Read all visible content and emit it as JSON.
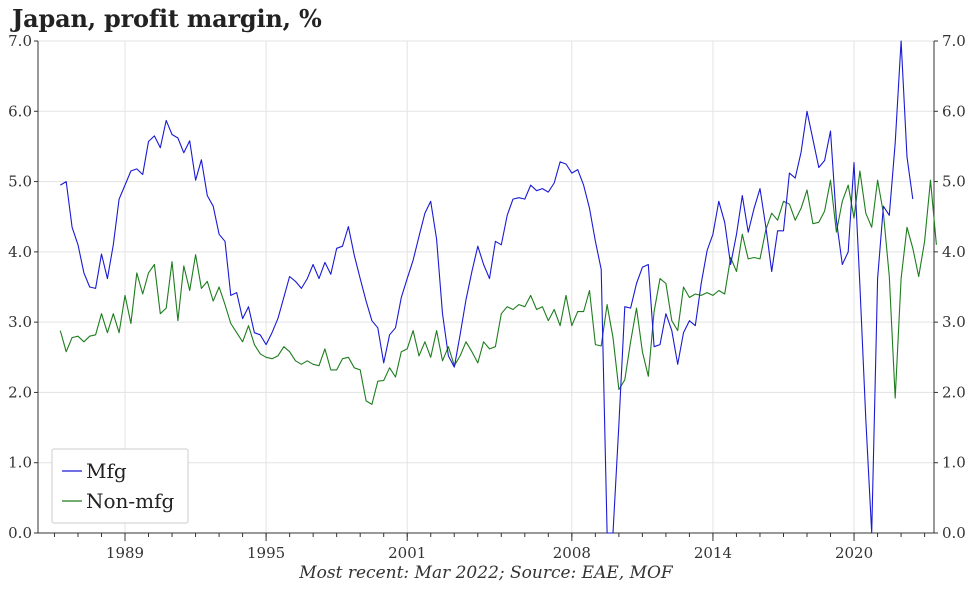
{
  "title": "Japan, profit margin, %",
  "footer": "Most recent: Mar 2022; Source: EAE, MOF",
  "colors": {
    "mfg": "#1a1ad4",
    "nonmfg": "#1e7d1e",
    "grid": "#e3e3e3",
    "axis": "#333333"
  },
  "chart_data": {
    "type": "line",
    "title": "Japan, profit margin, %",
    "xlabel": "",
    "ylabel": "",
    "ylim": [
      0,
      7
    ],
    "xlim": [
      1985.3,
      2023.4
    ],
    "y_ticks": [
      "0.0",
      "1.0",
      "2.0",
      "3.0",
      "4.0",
      "5.0",
      "6.0",
      "7.0"
    ],
    "x_ticks": [
      "1989",
      "1995",
      "2001",
      "2008",
      "2014",
      "2020"
    ],
    "y_axis_sides": "left-and-right",
    "grid": true,
    "legend_position": "bottom-left",
    "series": [
      {
        "name": "Mfg",
        "color": "#1a1ad4",
        "points": [
          [
            1986.25,
            4.95
          ],
          [
            1986.5,
            5.0
          ],
          [
            1986.75,
            4.35
          ],
          [
            1987.0,
            4.1
          ],
          [
            1987.25,
            3.7
          ],
          [
            1987.5,
            3.5
          ],
          [
            1987.75,
            3.48
          ],
          [
            1988.0,
            3.97
          ],
          [
            1988.25,
            3.62
          ],
          [
            1988.5,
            4.1
          ],
          [
            1988.75,
            4.75
          ],
          [
            1989.0,
            4.95
          ],
          [
            1989.25,
            5.15
          ],
          [
            1989.5,
            5.18
          ],
          [
            1989.75,
            5.1
          ],
          [
            1990.0,
            5.57
          ],
          [
            1990.25,
            5.65
          ],
          [
            1990.5,
            5.48
          ],
          [
            1990.75,
            5.87
          ],
          [
            1991.0,
            5.67
          ],
          [
            1991.25,
            5.62
          ],
          [
            1991.5,
            5.41
          ],
          [
            1991.75,
            5.58
          ],
          [
            1992.0,
            5.02
          ],
          [
            1992.25,
            5.31
          ],
          [
            1992.5,
            4.8
          ],
          [
            1992.75,
            4.65
          ],
          [
            1993.0,
            4.25
          ],
          [
            1993.25,
            4.15
          ],
          [
            1993.5,
            3.38
          ],
          [
            1993.75,
            3.42
          ],
          [
            1994.0,
            3.05
          ],
          [
            1994.25,
            3.22
          ],
          [
            1994.5,
            2.85
          ],
          [
            1994.75,
            2.82
          ],
          [
            1995.0,
            2.68
          ],
          [
            1995.25,
            2.85
          ],
          [
            1995.5,
            3.05
          ],
          [
            1995.75,
            3.35
          ],
          [
            1996.0,
            3.65
          ],
          [
            1996.25,
            3.58
          ],
          [
            1996.5,
            3.48
          ],
          [
            1996.75,
            3.62
          ],
          [
            1997.0,
            3.82
          ],
          [
            1997.25,
            3.62
          ],
          [
            1997.5,
            3.85
          ],
          [
            1997.75,
            3.68
          ],
          [
            1998.0,
            4.05
          ],
          [
            1998.25,
            4.08
          ],
          [
            1998.5,
            4.36
          ],
          [
            1998.75,
            3.95
          ],
          [
            1999.0,
            3.62
          ],
          [
            1999.25,
            3.3
          ],
          [
            1999.5,
            3.02
          ],
          [
            1999.75,
            2.92
          ],
          [
            2000.0,
            2.42
          ],
          [
            2000.25,
            2.82
          ],
          [
            2000.5,
            2.92
          ],
          [
            2000.75,
            3.35
          ],
          [
            2001.0,
            3.62
          ],
          [
            2001.25,
            3.88
          ],
          [
            2001.5,
            4.22
          ],
          [
            2001.75,
            4.55
          ],
          [
            2002.0,
            4.72
          ],
          [
            2002.25,
            4.18
          ],
          [
            2002.5,
            3.12
          ],
          [
            2002.75,
            2.52
          ],
          [
            2003.0,
            2.36
          ],
          [
            2003.25,
            2.82
          ],
          [
            2003.5,
            3.32
          ],
          [
            2003.75,
            3.72
          ],
          [
            2004.0,
            4.08
          ],
          [
            2004.25,
            3.82
          ],
          [
            2004.5,
            3.62
          ],
          [
            2004.75,
            4.15
          ],
          [
            2005.0,
            4.1
          ],
          [
            2005.25,
            4.52
          ],
          [
            2005.5,
            4.75
          ],
          [
            2005.75,
            4.77
          ],
          [
            2006.0,
            4.75
          ],
          [
            2006.25,
            4.95
          ],
          [
            2006.5,
            4.87
          ],
          [
            2006.75,
            4.9
          ],
          [
            2007.0,
            4.85
          ],
          [
            2007.25,
            4.98
          ],
          [
            2007.5,
            5.28
          ],
          [
            2007.75,
            5.25
          ],
          [
            2008.0,
            5.12
          ],
          [
            2008.25,
            5.17
          ],
          [
            2008.5,
            4.95
          ],
          [
            2008.75,
            4.62
          ],
          [
            2009.0,
            4.15
          ],
          [
            2009.25,
            3.75
          ],
          [
            2009.5,
            0.0
          ],
          [
            2009.75,
            0.0
          ],
          [
            2010.0,
            1.55
          ],
          [
            2010.25,
            3.22
          ],
          [
            2010.5,
            3.2
          ],
          [
            2010.75,
            3.55
          ],
          [
            2011.0,
            3.78
          ],
          [
            2011.25,
            3.82
          ],
          [
            2011.5,
            2.65
          ],
          [
            2011.75,
            2.68
          ],
          [
            2012.0,
            3.12
          ],
          [
            2012.25,
            2.88
          ],
          [
            2012.5,
            2.4
          ],
          [
            2012.75,
            2.85
          ],
          [
            2013.0,
            3.02
          ],
          [
            2013.25,
            2.95
          ],
          [
            2013.5,
            3.55
          ],
          [
            2013.75,
            4.02
          ],
          [
            2014.0,
            4.25
          ],
          [
            2014.25,
            4.72
          ],
          [
            2014.5,
            4.42
          ],
          [
            2014.75,
            3.82
          ],
          [
            2015.0,
            4.25
          ],
          [
            2015.25,
            4.8
          ],
          [
            2015.5,
            4.28
          ],
          [
            2015.75,
            4.62
          ],
          [
            2016.0,
            4.9
          ],
          [
            2016.25,
            4.35
          ],
          [
            2016.5,
            3.72
          ],
          [
            2016.75,
            4.3
          ],
          [
            2017.0,
            4.3
          ],
          [
            2017.25,
            5.12
          ],
          [
            2017.5,
            5.05
          ],
          [
            2017.75,
            5.42
          ],
          [
            2018.0,
            6.0
          ],
          [
            2018.25,
            5.6
          ],
          [
            2018.5,
            5.2
          ],
          [
            2018.75,
            5.3
          ],
          [
            2019.0,
            5.72
          ],
          [
            2019.25,
            4.45
          ],
          [
            2019.5,
            3.82
          ],
          [
            2019.75,
            4.0
          ],
          [
            2020.0,
            5.27
          ],
          [
            2020.25,
            3.52
          ],
          [
            2020.5,
            1.62
          ],
          [
            2020.75,
            0.0
          ],
          [
            2021.0,
            3.62
          ],
          [
            2021.25,
            4.65
          ],
          [
            2021.5,
            4.52
          ],
          [
            2021.75,
            5.55
          ],
          [
            2022.0,
            7.0
          ],
          [
            2022.25,
            5.35
          ],
          [
            2022.5,
            4.75
          ]
        ]
      },
      {
        "name": "Non-mfg",
        "color": "#1e7d1e",
        "points": [
          [
            1986.25,
            2.88
          ],
          [
            1986.5,
            2.58
          ],
          [
            1986.75,
            2.78
          ],
          [
            1987.0,
            2.8
          ],
          [
            1987.25,
            2.72
          ],
          [
            1987.5,
            2.8
          ],
          [
            1987.75,
            2.82
          ],
          [
            1988.0,
            3.12
          ],
          [
            1988.25,
            2.85
          ],
          [
            1988.5,
            3.12
          ],
          [
            1988.75,
            2.85
          ],
          [
            1989.0,
            3.38
          ],
          [
            1989.25,
            2.98
          ],
          [
            1989.5,
            3.7
          ],
          [
            1989.75,
            3.4
          ],
          [
            1990.0,
            3.7
          ],
          [
            1990.25,
            3.82
          ],
          [
            1990.5,
            3.12
          ],
          [
            1990.75,
            3.2
          ],
          [
            1991.0,
            3.86
          ],
          [
            1991.25,
            3.02
          ],
          [
            1991.5,
            3.8
          ],
          [
            1991.75,
            3.45
          ],
          [
            1992.0,
            3.96
          ],
          [
            1992.25,
            3.48
          ],
          [
            1992.5,
            3.58
          ],
          [
            1992.75,
            3.3
          ],
          [
            1993.0,
            3.5
          ],
          [
            1993.25,
            3.25
          ],
          [
            1993.5,
            2.98
          ],
          [
            1993.75,
            2.85
          ],
          [
            1994.0,
            2.72
          ],
          [
            1994.25,
            2.95
          ],
          [
            1994.5,
            2.68
          ],
          [
            1994.75,
            2.55
          ],
          [
            1995.0,
            2.5
          ],
          [
            1995.25,
            2.48
          ],
          [
            1995.5,
            2.52
          ],
          [
            1995.75,
            2.65
          ],
          [
            1996.0,
            2.58
          ],
          [
            1996.25,
            2.45
          ],
          [
            1996.5,
            2.4
          ],
          [
            1996.75,
            2.45
          ],
          [
            1997.0,
            2.4
          ],
          [
            1997.25,
            2.38
          ],
          [
            1997.5,
            2.62
          ],
          [
            1997.75,
            2.32
          ],
          [
            1998.0,
            2.32
          ],
          [
            1998.25,
            2.48
          ],
          [
            1998.5,
            2.5
          ],
          [
            1998.75,
            2.35
          ],
          [
            1999.0,
            2.32
          ],
          [
            1999.25,
            1.88
          ],
          [
            1999.5,
            1.83
          ],
          [
            1999.75,
            2.16
          ],
          [
            2000.0,
            2.17
          ],
          [
            2000.25,
            2.35
          ],
          [
            2000.5,
            2.22
          ],
          [
            2000.75,
            2.58
          ],
          [
            2001.0,
            2.62
          ],
          [
            2001.25,
            2.88
          ],
          [
            2001.5,
            2.52
          ],
          [
            2001.75,
            2.72
          ],
          [
            2002.0,
            2.5
          ],
          [
            2002.25,
            2.88
          ],
          [
            2002.5,
            2.45
          ],
          [
            2002.75,
            2.65
          ],
          [
            2003.0,
            2.38
          ],
          [
            2003.25,
            2.52
          ],
          [
            2003.5,
            2.72
          ],
          [
            2003.75,
            2.58
          ],
          [
            2004.0,
            2.42
          ],
          [
            2004.25,
            2.72
          ],
          [
            2004.5,
            2.62
          ],
          [
            2004.75,
            2.65
          ],
          [
            2005.0,
            3.12
          ],
          [
            2005.25,
            3.22
          ],
          [
            2005.5,
            3.18
          ],
          [
            2005.75,
            3.25
          ],
          [
            2006.0,
            3.22
          ],
          [
            2006.25,
            3.38
          ],
          [
            2006.5,
            3.18
          ],
          [
            2006.75,
            3.22
          ],
          [
            2007.0,
            3.02
          ],
          [
            2007.25,
            3.18
          ],
          [
            2007.5,
            2.95
          ],
          [
            2007.75,
            3.38
          ],
          [
            2008.0,
            2.95
          ],
          [
            2008.25,
            3.15
          ],
          [
            2008.5,
            3.15
          ],
          [
            2008.75,
            3.45
          ],
          [
            2009.0,
            2.68
          ],
          [
            2009.25,
            2.66
          ],
          [
            2009.5,
            3.25
          ],
          [
            2009.75,
            2.78
          ],
          [
            2010.0,
            2.04
          ],
          [
            2010.25,
            2.18
          ],
          [
            2010.5,
            2.72
          ],
          [
            2010.75,
            3.2
          ],
          [
            2011.0,
            2.58
          ],
          [
            2011.25,
            2.23
          ],
          [
            2011.5,
            3.15
          ],
          [
            2011.75,
            3.62
          ],
          [
            2012.0,
            3.55
          ],
          [
            2012.25,
            3.02
          ],
          [
            2012.5,
            2.88
          ],
          [
            2012.75,
            3.5
          ],
          [
            2013.0,
            3.35
          ],
          [
            2013.25,
            3.4
          ],
          [
            2013.5,
            3.38
          ],
          [
            2013.75,
            3.42
          ],
          [
            2014.0,
            3.38
          ],
          [
            2014.25,
            3.45
          ],
          [
            2014.5,
            3.4
          ],
          [
            2014.75,
            3.92
          ],
          [
            2015.0,
            3.72
          ],
          [
            2015.25,
            4.25
          ],
          [
            2015.5,
            3.9
          ],
          [
            2015.75,
            3.92
          ],
          [
            2016.0,
            3.9
          ],
          [
            2016.25,
            4.32
          ],
          [
            2016.5,
            4.55
          ],
          [
            2016.75,
            4.45
          ],
          [
            2017.0,
            4.72
          ],
          [
            2017.25,
            4.68
          ],
          [
            2017.5,
            4.45
          ],
          [
            2017.75,
            4.62
          ],
          [
            2018.0,
            4.88
          ],
          [
            2018.25,
            4.4
          ],
          [
            2018.5,
            4.42
          ],
          [
            2018.75,
            4.58
          ],
          [
            2019.0,
            5.02
          ],
          [
            2019.25,
            4.28
          ],
          [
            2019.5,
            4.72
          ],
          [
            2019.75,
            4.95
          ],
          [
            2020.0,
            4.48
          ],
          [
            2020.25,
            5.15
          ],
          [
            2020.5,
            4.55
          ],
          [
            2020.75,
            4.35
          ],
          [
            2021.0,
            5.02
          ],
          [
            2021.25,
            4.55
          ],
          [
            2021.5,
            3.65
          ],
          [
            2021.75,
            1.92
          ],
          [
            2022.0,
            3.62
          ],
          [
            2022.25,
            4.35
          ],
          [
            2022.5,
            4.05
          ],
          [
            2022.75,
            3.65
          ],
          [
            2023.0,
            4.15
          ],
          [
            2023.25,
            5.02
          ],
          [
            2023.5,
            4.1
          ]
        ]
      }
    ]
  }
}
